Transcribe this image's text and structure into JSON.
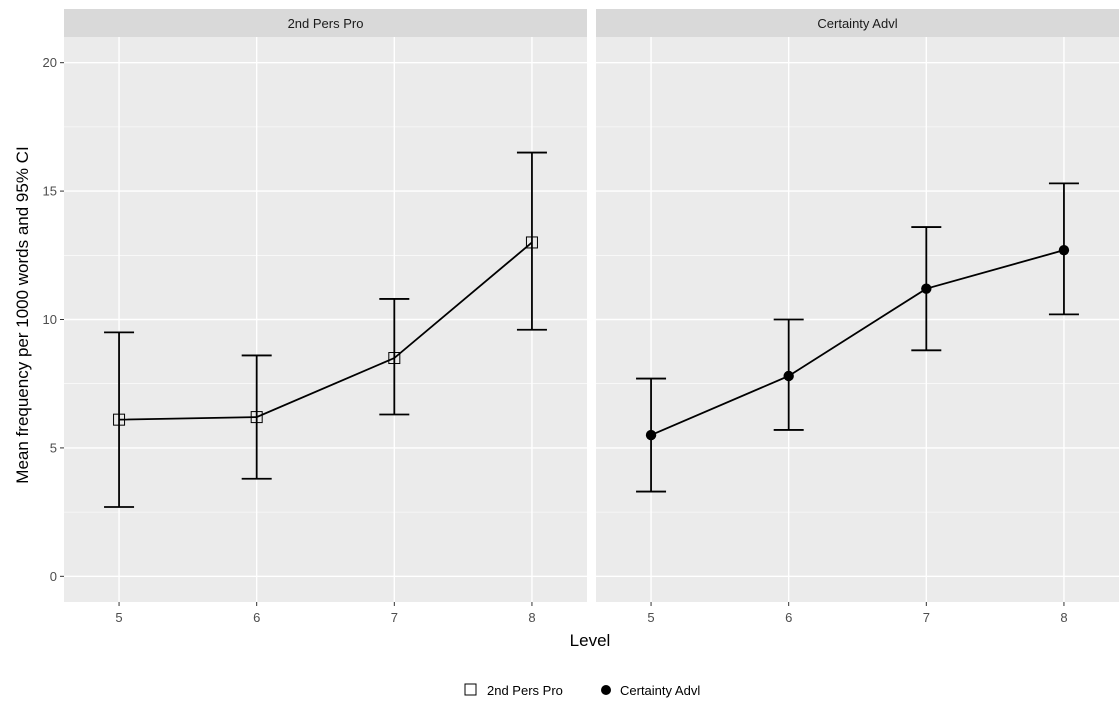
{
  "chart_data": {
    "type": "line",
    "error_bars": "95% CI",
    "ylabel": "Mean frequency per 1000 words and 95% CI",
    "xlabel": "Level",
    "ylim": [
      -1,
      21
    ],
    "y_ticks": [
      0,
      5,
      10,
      15,
      20
    ],
    "x_ticks": [
      5,
      6,
      7,
      8
    ],
    "grid": true,
    "legend_position": "bottom",
    "legend": [
      {
        "label": "2nd Pers Pro",
        "marker": "open-square"
      },
      {
        "label": "Certainty Advl",
        "marker": "filled-circle"
      }
    ],
    "panels": [
      {
        "strip": "2nd Pers Pro",
        "marker": "open-square",
        "x": [
          5,
          6,
          7,
          8
        ],
        "y": [
          6.1,
          6.2,
          8.5,
          13.0
        ],
        "ci_low": [
          2.7,
          3.8,
          6.3,
          9.6
        ],
        "ci_high": [
          9.5,
          8.6,
          10.8,
          16.5
        ]
      },
      {
        "strip": "Certainty Advl",
        "marker": "filled-circle",
        "x": [
          5,
          6,
          7,
          8
        ],
        "y": [
          5.5,
          7.8,
          11.2,
          12.7
        ],
        "ci_low": [
          3.3,
          5.7,
          8.8,
          10.2
        ],
        "ci_high": [
          7.7,
          10.0,
          13.6,
          15.3
        ]
      }
    ],
    "colors": {
      "panel_bg": "#ebebeb",
      "strip_bg": "#d9d9d9",
      "grid": "#ffffff",
      "ink": "#000000",
      "tick_text": "#4d4d4d"
    }
  }
}
